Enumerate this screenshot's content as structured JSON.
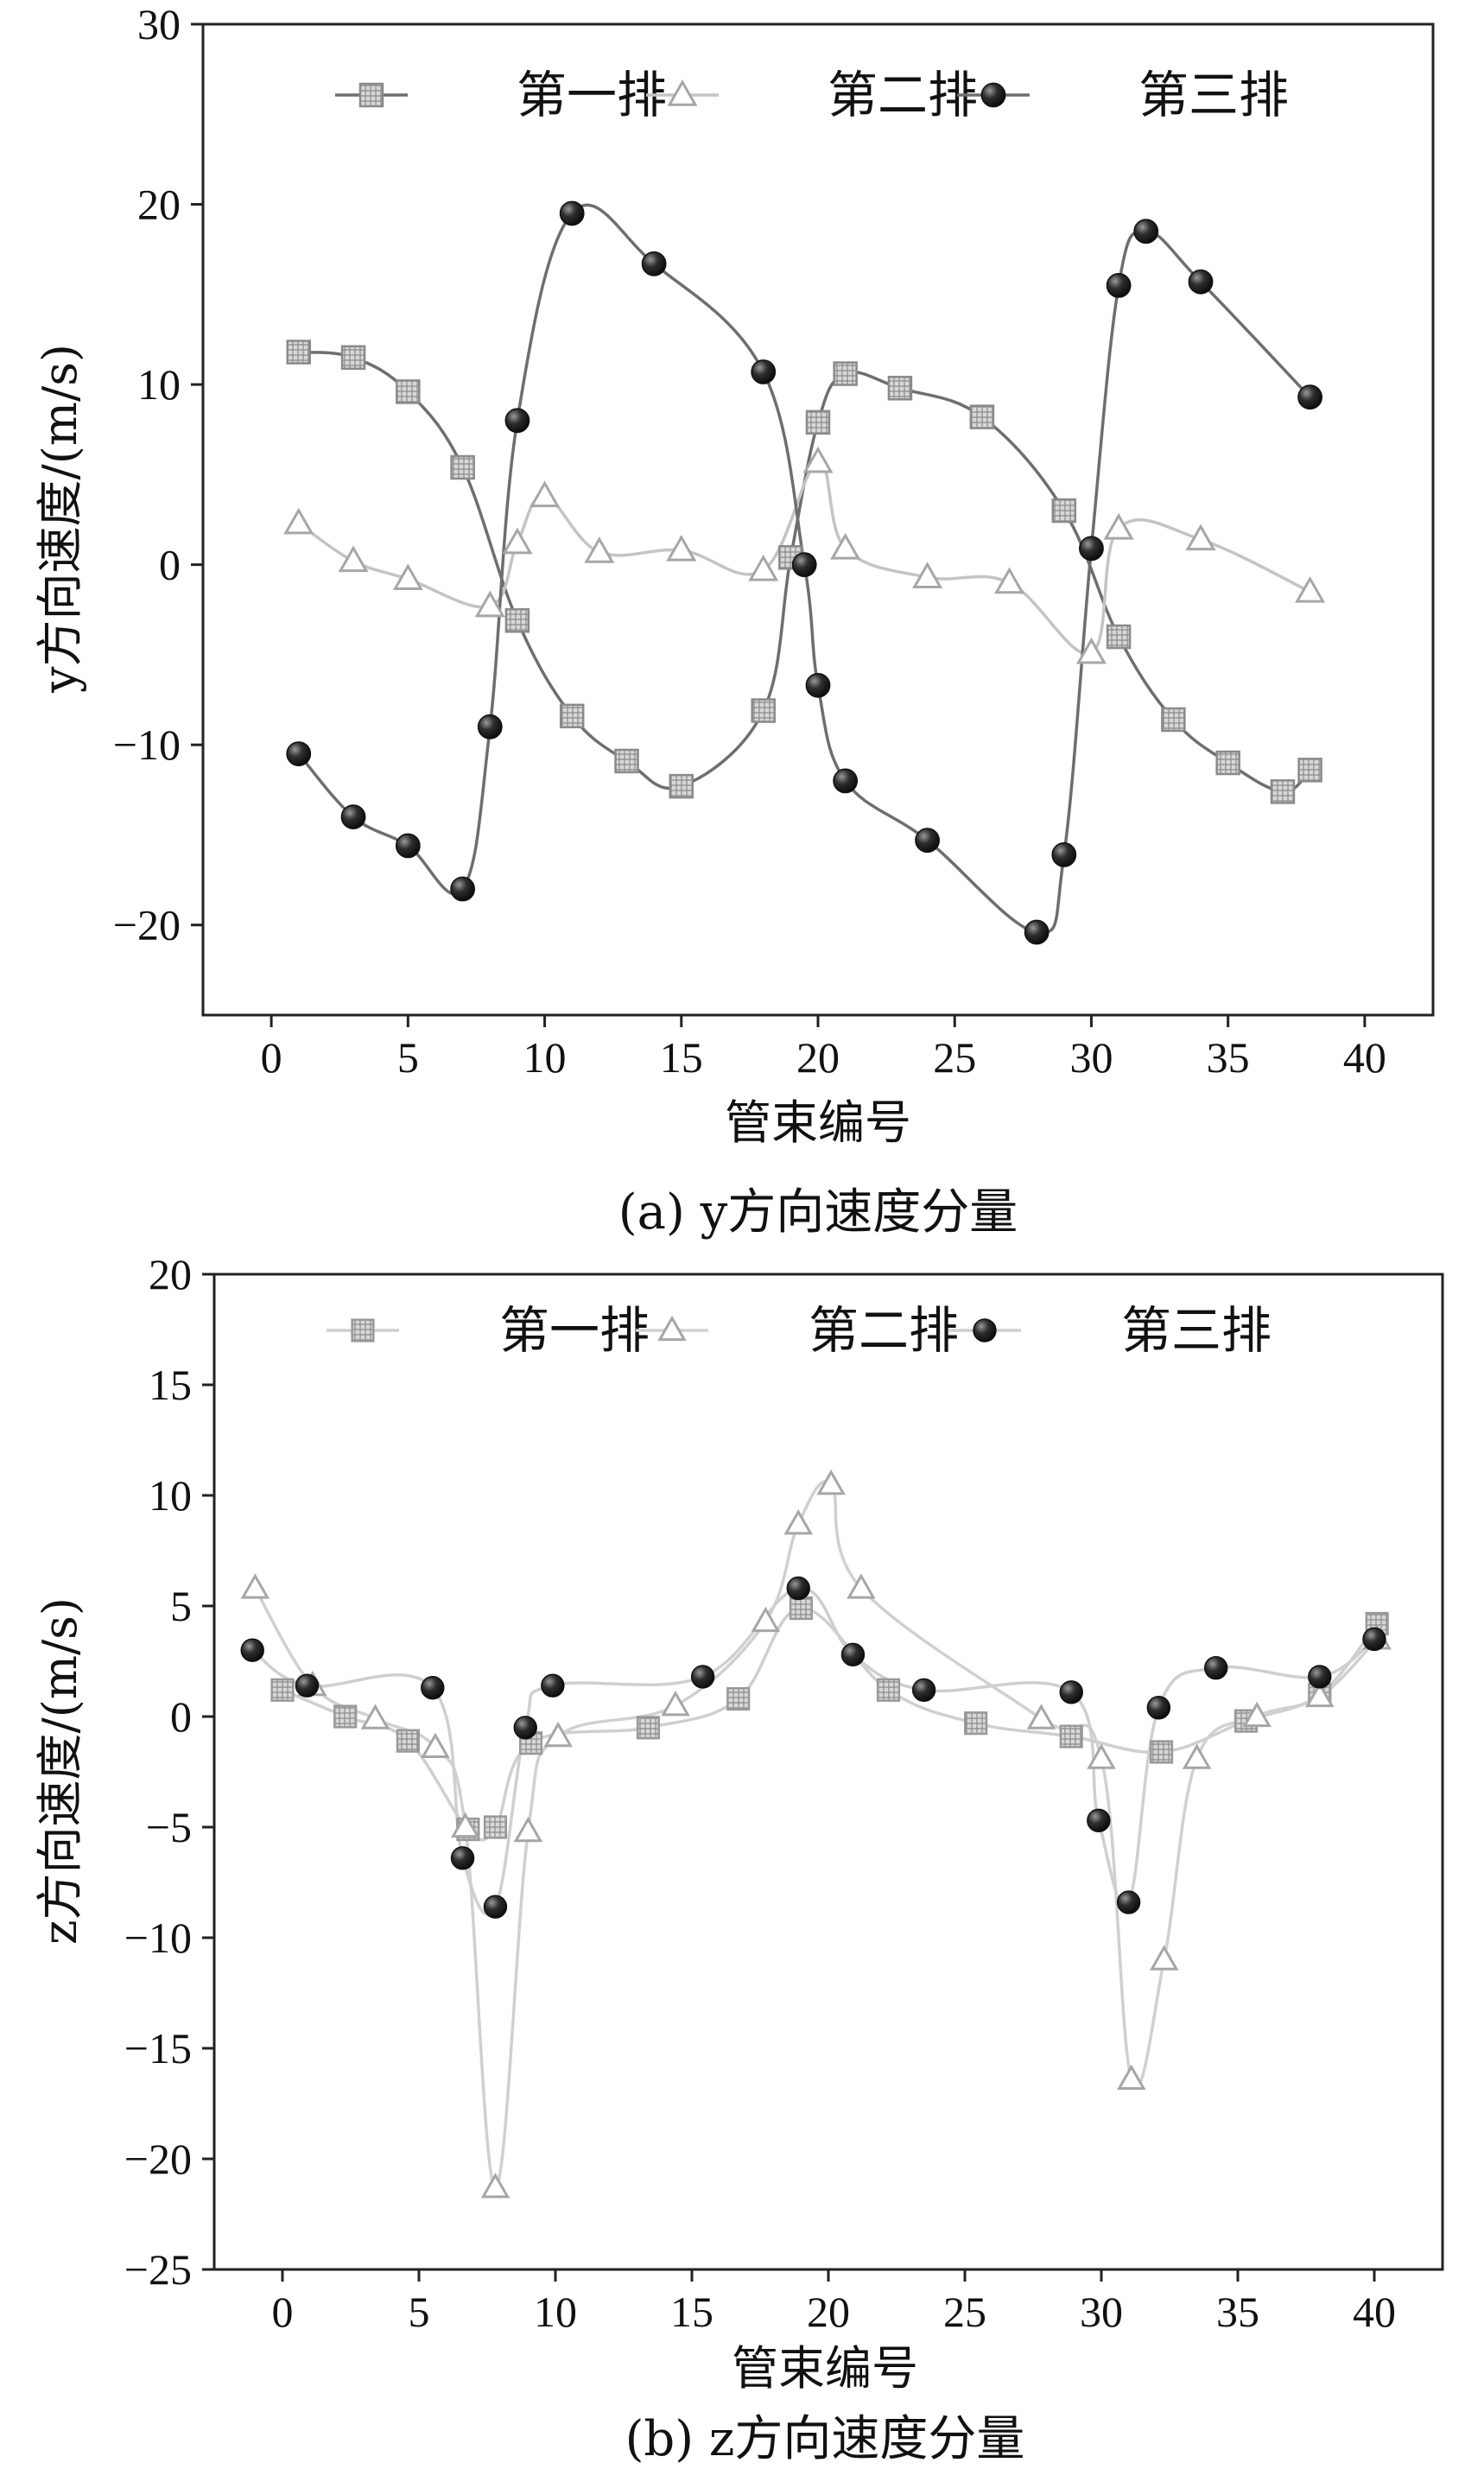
{
  "chart_data": [
    {
      "panel": "a",
      "type": "line",
      "title": "",
      "caption": "(a) y方向速度分量",
      "xlabel": "管束编号",
      "ylabel": "y方向速度/(m/s)",
      "xlim": [
        -2.5,
        42.5
      ],
      "ylim": [
        -25,
        30
      ],
      "xticks": [
        0,
        5,
        10,
        15,
        20,
        25,
        30,
        35,
        40
      ],
      "yticks": [
        -20,
        -10,
        0,
        10,
        20,
        30
      ],
      "ytick_labels": [
        "−20",
        "−10",
        "0",
        "10",
        "20",
        "30"
      ],
      "legend_position": "top",
      "colors": {
        "frame": "#222222",
        "row1": "#8a8a8a",
        "row2": "#a6a6a6",
        "row3": "#2a2a2a",
        "row1_line": "#6e6e6e",
        "row2_line": "#c4c4c4",
        "row3_line": "#6e6e6e"
      },
      "series": [
        {
          "name": "第一排",
          "marker": "square",
          "x": [
            1,
            3,
            5,
            7,
            9,
            11,
            13,
            15,
            18,
            19,
            20,
            21,
            23,
            26,
            29,
            31,
            33,
            35,
            37,
            38
          ],
          "y": [
            11.8,
            11.5,
            9.6,
            5.4,
            -3.1,
            -8.4,
            -10.9,
            -12.3,
            -8.1,
            0.4,
            7.9,
            10.6,
            9.8,
            8.2,
            3.0,
            -4.0,
            -8.6,
            -11.0,
            -12.6,
            -11.4
          ]
        },
        {
          "name": "第二排",
          "marker": "triangle",
          "x": [
            1,
            3,
            5,
            8,
            9,
            10,
            12,
            15,
            18,
            20,
            21,
            24,
            27,
            30,
            31,
            34,
            38
          ],
          "y": [
            2.3,
            0.2,
            -0.8,
            -2.3,
            1.2,
            3.8,
            0.7,
            0.8,
            -0.3,
            5.7,
            0.9,
            -0.7,
            -1.0,
            -4.9,
            2.0,
            1.4,
            -1.5
          ]
        },
        {
          "name": "第三排",
          "marker": "circle",
          "x": [
            1,
            3,
            5,
            7,
            8,
            9,
            11,
            14,
            18,
            19.5,
            20,
            21,
            24,
            28,
            29,
            30,
            31,
            32,
            34,
            38
          ],
          "y": [
            -10.5,
            -14.0,
            -15.6,
            -18.0,
            -9.0,
            8.0,
            19.5,
            16.7,
            10.7,
            0.0,
            -6.7,
            -12.0,
            -15.3,
            -20.4,
            -16.1,
            0.9,
            15.5,
            18.5,
            15.7,
            9.3
          ]
        }
      ]
    },
    {
      "panel": "b",
      "type": "line",
      "title": "",
      "caption": "(b) z方向速度分量",
      "xlabel": "管束编号",
      "ylabel": "z方向速度/(m/s)",
      "xlim": [
        -2.5,
        42.5
      ],
      "ylim": [
        -25,
        20
      ],
      "xticks": [
        0,
        5,
        10,
        15,
        20,
        25,
        30,
        35,
        40
      ],
      "yticks": [
        -25,
        -20,
        -15,
        -10,
        -5,
        0,
        5,
        10,
        15,
        20
      ],
      "ytick_labels": [
        "−25",
        "−20",
        "−15",
        "−10",
        "−5",
        "0",
        "5",
        "10",
        "15",
        "20"
      ],
      "legend_position": "top",
      "colors": {
        "frame": "#222222",
        "row1": "#999999",
        "row2": "#a6a6a6",
        "row3": "#222222",
        "row1_line": "#cfcfcf",
        "row2_line": "#d0d0d0",
        "row3_line": "#cfcfcf"
      },
      "series": [
        {
          "name": "第一排",
          "marker": "square",
          "x": [
            0,
            2.3,
            4.6,
            6.8,
            7.8,
            9.1,
            13.4,
            16.7,
            19,
            22.2,
            25.4,
            28.9,
            32.2,
            35.3,
            38,
            40.1
          ],
          "y": [
            1.2,
            0.0,
            -1.1,
            -5.1,
            -5.0,
            -1.2,
            -0.5,
            0.8,
            4.9,
            1.2,
            -0.3,
            -0.9,
            -1.6,
            -0.2,
            1.0,
            4.2
          ]
        },
        {
          "name": "第二排",
          "marker": "triangle",
          "x": [
            -1,
            1.1,
            3.4,
            5.6,
            6.7,
            7.8,
            9.0,
            10.1,
            14.4,
            17.7,
            18.9,
            20.1,
            21.2,
            27.8,
            30.0,
            31.1,
            32.3,
            33.5,
            35.7,
            38,
            40.1
          ],
          "y": [
            5.8,
            1.4,
            -0.1,
            -1.4,
            -5.0,
            -21.3,
            -5.2,
            -0.9,
            0.5,
            4.3,
            8.7,
            10.5,
            5.8,
            -0.1,
            -1.9,
            -16.4,
            -11.0,
            -1.9,
            0.0,
            0.9,
            3.5
          ]
        },
        {
          "name": "第三排",
          "marker": "circle",
          "x": [
            -1.1,
            0.9,
            5.5,
            6.6,
            7.8,
            8.9,
            9.9,
            15.4,
            18.9,
            20.9,
            23.5,
            28.9,
            29.9,
            31.0,
            32.1,
            34.2,
            38.0,
            40.0
          ],
          "y": [
            3.0,
            1.4,
            1.3,
            -6.4,
            -8.6,
            -0.5,
            1.4,
            1.8,
            5.8,
            2.8,
            1.2,
            1.1,
            -4.7,
            -8.4,
            0.4,
            2.2,
            1.8,
            3.5
          ]
        }
      ]
    }
  ]
}
